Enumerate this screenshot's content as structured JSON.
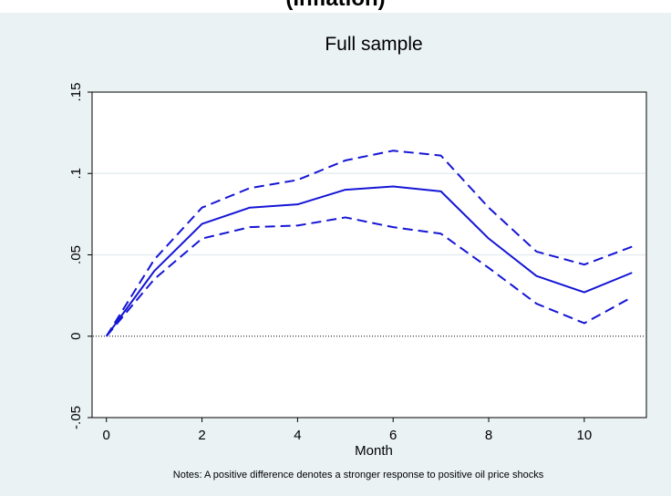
{
  "page": {
    "top_title": "(Inflation)",
    "notes": "Notes: A positive difference denotes a stronger response to positive oil price shocks"
  },
  "chart_data": {
    "type": "line",
    "title": "Full sample",
    "xlabel": "Month",
    "ylabel": "",
    "xlim": [
      -0.3,
      11.3
    ],
    "ylim": [
      -0.05,
      0.15
    ],
    "xticks": [
      0,
      2,
      4,
      6,
      8,
      10
    ],
    "xtick_labels": [
      "0",
      "2",
      "4",
      "6",
      "8",
      "10"
    ],
    "yticks": [
      -0.05,
      0,
      0.05,
      0.1,
      0.15
    ],
    "ytick_labels": [
      "-.05",
      "0",
      ".05",
      ".1",
      ".15"
    ],
    "gridlines_y": [
      0.05,
      0.1
    ],
    "reference_line_y": 0,
    "x": [
      0,
      1,
      2,
      3,
      4,
      5,
      6,
      7,
      8,
      9,
      10,
      11
    ],
    "series": [
      {
        "role": "estimate",
        "style": "solid",
        "color": "#1515d6",
        "values": [
          0,
          0.04,
          0.069,
          0.079,
          0.081,
          0.09,
          0.092,
          0.089,
          0.06,
          0.037,
          0.027,
          0.039
        ]
      },
      {
        "role": "upper",
        "style": "dashed",
        "color": "#1515d6",
        "values": [
          0,
          0.047,
          0.079,
          0.091,
          0.096,
          0.108,
          0.114,
          0.111,
          0.079,
          0.052,
          0.044,
          0.055
        ]
      },
      {
        "role": "lower",
        "style": "dashed",
        "color": "#1515d6",
        "values": [
          0,
          0.035,
          0.06,
          0.067,
          0.068,
          0.073,
          0.067,
          0.063,
          0.042,
          0.02,
          0.008,
          0.024
        ]
      }
    ]
  }
}
